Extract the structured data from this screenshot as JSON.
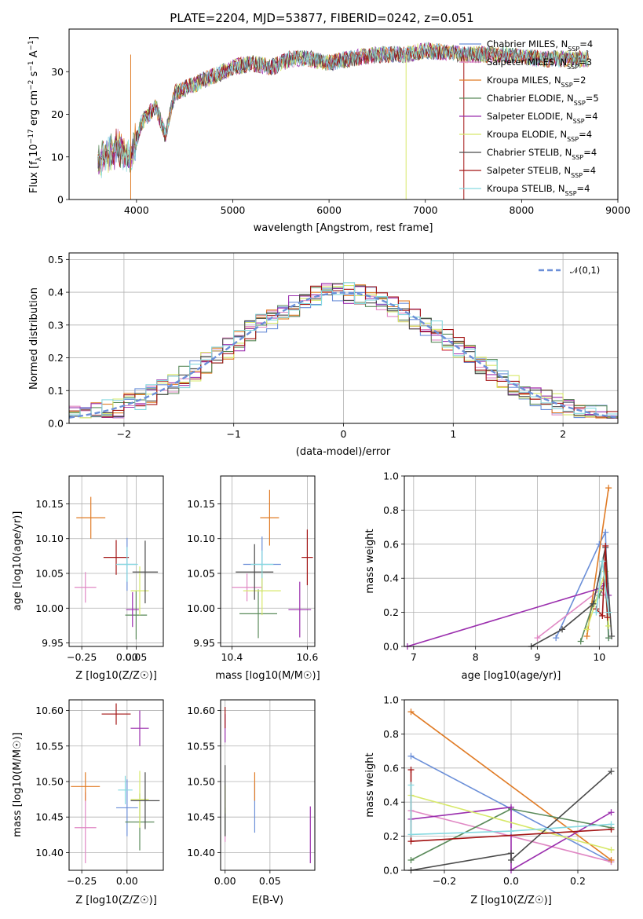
{
  "colors": {
    "Chabrier MILES": "#6b8fd8",
    "Salpeter MILES": "#e088c4",
    "Kroupa MILES": "#e07b25",
    "Chabrier ELODIE": "#5a8a5a",
    "Salpeter ELODIE": "#9b2fae",
    "Kroupa ELODIE": "#d7e86a",
    "Chabrier STELIB": "#4a4a4a",
    "Salpeter STELIB": "#a31515",
    "Kroupa STELIB": "#86d9e0"
  },
  "chart_data": [
    {
      "type": "line",
      "title": "PLATE=2204, MJD=53877, FIBERID=0242, z=0.051",
      "xlabel": "wavelength [Angstrom, rest frame]",
      "ylabel": "Flux [f_λ 10^-17 erg cm^-2 s^-1 A^-1]",
      "xlim": [
        3300,
        9000
      ],
      "ylim": [
        0,
        40
      ],
      "xticks": [
        4000,
        5000,
        6000,
        7000,
        8000,
        9000
      ],
      "yticks": [
        0,
        10,
        20,
        30
      ],
      "legend": "right",
      "series": [
        {
          "name": "Chabrier MILES",
          "nssp": "4"
        },
        {
          "name": "Salpeter MILES",
          "nssp": "3"
        },
        {
          "name": "Kroupa MILES",
          "nssp": "2"
        },
        {
          "name": "Chabrier ELODIE",
          "nssp": "5"
        },
        {
          "name": "Salpeter ELODIE",
          "nssp": "4"
        },
        {
          "name": "Kroupa ELODIE",
          "nssp": "4"
        },
        {
          "name": "Chabrier STELIB",
          "nssp": "4"
        },
        {
          "name": "Salpeter STELIB",
          "nssp": "4"
        },
        {
          "name": "Kroupa STELIB",
          "nssp": "4"
        }
      ],
      "spectrum_envelope": {
        "x": [
          3600,
          3800,
          3950,
          4050,
          4200,
          4300,
          4400,
          4600,
          4800,
          5000,
          5200,
          5400,
          5600,
          5800,
          6000,
          6200,
          6500,
          6800,
          7000,
          7400,
          7800,
          8200,
          8600
        ],
        "y": [
          9,
          12,
          10,
          18,
          22,
          15,
          25,
          27,
          29,
          31,
          32,
          31,
          33,
          33,
          32,
          33,
          34,
          34,
          35,
          34,
          34,
          33,
          33
        ]
      }
    },
    {
      "type": "line",
      "xlabel": "(data-model)/error",
      "ylabel": "Normed distribution",
      "xlim": [
        -2.5,
        2.5
      ],
      "ylim": [
        0,
        0.52
      ],
      "xticks": [
        -2,
        -1,
        0,
        1,
        2
      ],
      "yticks": [
        0.0,
        0.1,
        0.2,
        0.3,
        0.4,
        0.5
      ],
      "legend": "top-right",
      "reference": {
        "name": "𝒩(0,1)",
        "mu": 0,
        "sigma": 1
      }
    },
    {
      "type": "scatter",
      "xlabel": "Z [log10(Z/Z☉)]",
      "ylabel": "age [log10(age/yr)]",
      "xlim": [
        -0.32,
        0.2
      ],
      "ylim": [
        9.945,
        10.19
      ],
      "xticks": [
        -0.25,
        0.0,
        0.05
      ],
      "xticklabels": [
        "−0.25",
        "0.00",
        "0.05"
      ],
      "yticks": [
        9.95,
        10.0,
        10.05,
        10.1,
        10.15
      ],
      "points": [
        {
          "s": "Chabrier MILES",
          "x": 0.0,
          "y": 10.063,
          "xe": 0.05,
          "ye": 0.038
        },
        {
          "s": "Salpeter MILES",
          "x": -0.23,
          "y": 10.03,
          "xe": 0.06,
          "ye": 0.022
        },
        {
          "s": "Kroupa MILES",
          "x": -0.2,
          "y": 10.13,
          "xe": 0.08,
          "ye": 0.03
        },
        {
          "s": "Chabrier ELODIE",
          "x": 0.05,
          "y": 9.99,
          "xe": 0.06,
          "ye": 0.035
        },
        {
          "s": "Salpeter ELODIE",
          "x": 0.03,
          "y": 9.998,
          "xe": 0.035,
          "ye": 0.025
        },
        {
          "s": "Kroupa ELODIE",
          "x": 0.07,
          "y": 10.025,
          "xe": 0.05,
          "ye": 0.035
        },
        {
          "s": "Chabrier STELIB",
          "x": 0.1,
          "y": 10.052,
          "xe": 0.07,
          "ye": 0.045
        },
        {
          "s": "Salpeter STELIB",
          "x": -0.06,
          "y": 10.073,
          "xe": 0.07,
          "ye": 0.025
        },
        {
          "s": "Kroupa STELIB",
          "x": 0.0,
          "y": 10.063,
          "xe": 0.06,
          "ye": 0.025
        }
      ]
    },
    {
      "type": "scatter",
      "xlabel": "mass [log10(M/M☉)]",
      "xlim": [
        10.37,
        10.62
      ],
      "ylim": [
        9.945,
        10.19
      ],
      "xticks": [
        10.4,
        10.6
      ],
      "yticks": [
        9.95,
        10.0,
        10.05,
        10.1,
        10.15
      ],
      "points": [
        {
          "s": "Chabrier MILES",
          "x": 10.48,
          "y": 10.063,
          "xe": 0.05,
          "ye": 0.04
        },
        {
          "s": "Salpeter MILES",
          "x": 10.44,
          "y": 10.03,
          "xe": 0.04,
          "ye": 0.02
        },
        {
          "s": "Kroupa MILES",
          "x": 10.5,
          "y": 10.13,
          "xe": 0.025,
          "ye": 0.04
        },
        {
          "s": "Chabrier ELODIE",
          "x": 10.47,
          "y": 9.992,
          "xe": 0.05,
          "ye": 0.035
        },
        {
          "s": "Salpeter ELODIE",
          "x": 10.58,
          "y": 9.998,
          "xe": 0.03,
          "ye": 0.04
        },
        {
          "s": "Kroupa ELODIE",
          "x": 10.48,
          "y": 10.025,
          "xe": 0.05,
          "ye": 0.035
        },
        {
          "s": "Chabrier STELIB",
          "x": 10.46,
          "y": 10.052,
          "xe": 0.05,
          "ye": 0.04
        },
        {
          "s": "Salpeter STELIB",
          "x": 10.6,
          "y": 10.073,
          "xe": 0.015,
          "ye": 0.04
        },
        {
          "s": "Kroupa STELIB",
          "x": 10.48,
          "y": 10.063,
          "xe": 0.03,
          "ye": 0.02
        }
      ]
    },
    {
      "type": "line",
      "xlabel": "age [log10(age/yr)]",
      "ylabel": "mass weight",
      "xlim": [
        6.85,
        10.3
      ],
      "ylim": [
        0,
        1
      ],
      "xticks": [
        7,
        8,
        9,
        10
      ],
      "yticks": [
        0.0,
        0.2,
        0.4,
        0.6,
        0.8,
        1.0
      ],
      "series": [
        {
          "s": "Chabrier MILES",
          "x": [
            9.3,
            10.0,
            10.1,
            10.15
          ],
          "y": [
            0.05,
            0.6,
            0.67,
            0.05
          ]
        },
        {
          "s": "Salpeter MILES",
          "x": [
            9.0,
            10.0,
            10.1
          ],
          "y": [
            0.05,
            0.33,
            0.3
          ]
        },
        {
          "s": "Kroupa MILES",
          "x": [
            9.8,
            10.15
          ],
          "y": [
            0.06,
            0.93
          ]
        },
        {
          "s": "Chabrier ELODIE",
          "x": [
            9.7,
            9.9,
            10.0,
            10.1,
            10.15
          ],
          "y": [
            0.03,
            0.25,
            0.3,
            0.37,
            0.05
          ]
        },
        {
          "s": "Salpeter ELODIE",
          "x": [
            6.9,
            10.0,
            10.1,
            10.15
          ],
          "y": [
            0.0,
            0.34,
            0.37,
            0.3
          ]
        },
        {
          "s": "Kroupa ELODIE",
          "x": [
            9.8,
            10.0,
            10.1,
            10.15
          ],
          "y": [
            0.1,
            0.33,
            0.44,
            0.12
          ]
        },
        {
          "s": "Chabrier STELIB",
          "x": [
            8.9,
            9.4,
            9.9,
            10.1,
            10.2
          ],
          "y": [
            0.0,
            0.1,
            0.25,
            0.58,
            0.06
          ]
        },
        {
          "s": "Salpeter STELIB",
          "x": [
            9.95,
            10.05,
            10.1,
            10.13
          ],
          "y": [
            0.22,
            0.18,
            0.59,
            0.17
          ]
        },
        {
          "s": "Kroupa STELIB",
          "x": [
            9.95,
            10.05,
            10.15
          ],
          "y": [
            0.2,
            0.5,
            0.2
          ]
        }
      ]
    },
    {
      "type": "scatter",
      "xlabel": "Z [log10(Z/Z☉)]",
      "ylabel": "mass [log10(M/M☉)]",
      "xlim": [
        -0.32,
        0.2
      ],
      "ylim": [
        10.375,
        10.615
      ],
      "xticks": [
        -0.25,
        0.0
      ],
      "xticklabels": [
        "−0.25",
        "0.00"
      ],
      "yticks": [
        10.4,
        10.45,
        10.5,
        10.55,
        10.6
      ],
      "points": [
        {
          "s": "Chabrier MILES",
          "x": 0.0,
          "y": 10.463,
          "xe": 0.06,
          "ye": 0.04
        },
        {
          "s": "Salpeter MILES",
          "x": -0.23,
          "y": 10.435,
          "xe": 0.06,
          "ye": 0.05
        },
        {
          "s": "Kroupa MILES",
          "x": -0.23,
          "y": 10.493,
          "xe": 0.08,
          "ye": 0.02
        },
        {
          "s": "Chabrier ELODIE",
          "x": 0.07,
          "y": 10.443,
          "xe": 0.08,
          "ye": 0.04
        },
        {
          "s": "Salpeter ELODIE",
          "x": 0.07,
          "y": 10.575,
          "xe": 0.05,
          "ye": 0.025
        },
        {
          "s": "Kroupa ELODIE",
          "x": 0.07,
          "y": 10.475,
          "xe": 0.05,
          "ye": 0.04
        },
        {
          "s": "Chabrier STELIB",
          "x": 0.1,
          "y": 10.473,
          "xe": 0.08,
          "ye": 0.04
        },
        {
          "s": "Salpeter STELIB",
          "x": -0.06,
          "y": 10.595,
          "xe": 0.08,
          "ye": 0.015
        },
        {
          "s": "Kroupa STELIB",
          "x": -0.01,
          "y": 10.488,
          "xe": 0.04,
          "ye": 0.02
        }
      ]
    },
    {
      "type": "scatter",
      "xlabel": "E(B-V)",
      "xlim": [
        -0.005,
        0.1
      ],
      "ylim": [
        10.375,
        10.615
      ],
      "xticks": [
        0.0,
        0.05
      ],
      "xticklabels": [
        "0.00",
        "0.05"
      ],
      "yticks": [
        10.4,
        10.45,
        10.5,
        10.55,
        10.6
      ],
      "points": [
        {
          "s": "Chabrier MILES",
          "x": 0.033,
          "y": 10.463,
          "xe": 0,
          "ye": 0.035
        },
        {
          "s": "Salpeter MILES",
          "x": 0.0,
          "y": 10.435,
          "xe": 0,
          "ye": 0.02
        },
        {
          "s": "Kroupa MILES",
          "x": 0.033,
          "y": 10.493,
          "xe": 0,
          "ye": 0.02
        },
        {
          "s": "Chabrier ELODIE",
          "x": 0.0,
          "y": 10.443,
          "xe": 0,
          "ye": 0.02
        },
        {
          "s": "Salpeter ELODIE",
          "x": 0.0,
          "y": 10.575,
          "xe": 0,
          "ye": 0.02
        },
        {
          "s": "Kroupa ELODIE",
          "x": 0.0,
          "y": 10.475,
          "xe": 0,
          "ye": 0.02
        },
        {
          "s": "Chabrier STELIB",
          "x": 0.0,
          "y": 10.473,
          "xe": 0,
          "ye": 0.05
        },
        {
          "s": "Salpeter STELIB",
          "x": 0.0,
          "y": 10.59,
          "xe": 0,
          "ye": 0.015
        },
        {
          "s": "Salpeter ELODIE",
          "x": 0.095,
          "y": 10.425,
          "xe": 0,
          "ye": 0.04
        }
      ]
    },
    {
      "type": "line",
      "xlabel": "Z [log10(Z/Z☉)]",
      "ylabel": "mass weight",
      "xlim": [
        -0.32,
        0.32
      ],
      "ylim": [
        0,
        1
      ],
      "xticks": [
        -0.2,
        0.0,
        0.2
      ],
      "xticklabels": [
        "−0.2",
        "0.0",
        "0.2"
      ],
      "yticks": [
        0.0,
        0.2,
        0.4,
        0.6,
        0.8,
        1.0
      ],
      "series": [
        {
          "s": "Chabrier MILES",
          "x": [
            -0.3,
            0.3
          ],
          "y": [
            0.67,
            0.05
          ]
        },
        {
          "s": "Salpeter MILES",
          "x": [
            -0.3,
            0.3
          ],
          "y": [
            0.35,
            0.05
          ]
        },
        {
          "s": "Kroupa MILES",
          "x": [
            -0.3,
            0.3
          ],
          "y": [
            0.93,
            0.06
          ]
        },
        {
          "s": "Chabrier ELODIE",
          "x": [
            -0.3,
            0.0,
            0.3
          ],
          "y": [
            0.06,
            0.36,
            0.25
          ]
        },
        {
          "s": "Salpeter ELODIE",
          "x": [
            -0.3,
            0.0,
            0.0,
            0.3
          ],
          "y": [
            0.3,
            0.37,
            0.0,
            0.34
          ]
        },
        {
          "s": "Kroupa ELODIE",
          "x": [
            -0.3,
            0.3
          ],
          "y": [
            0.44,
            0.12
          ]
        },
        {
          "s": "Chabrier STELIB",
          "x": [
            -0.3,
            0.0,
            0.0,
            0.3
          ],
          "y": [
            0.0,
            0.1,
            0.06,
            0.58
          ]
        },
        {
          "s": "Salpeter STELIB",
          "x": [
            -0.3,
            -0.3,
            0.3
          ],
          "y": [
            0.59,
            0.17,
            0.24
          ]
        },
        {
          "s": "Kroupa STELIB",
          "x": [
            -0.3,
            -0.3,
            0.0,
            0.3
          ],
          "y": [
            0.5,
            0.21,
            0.23,
            0.27
          ]
        }
      ]
    }
  ]
}
